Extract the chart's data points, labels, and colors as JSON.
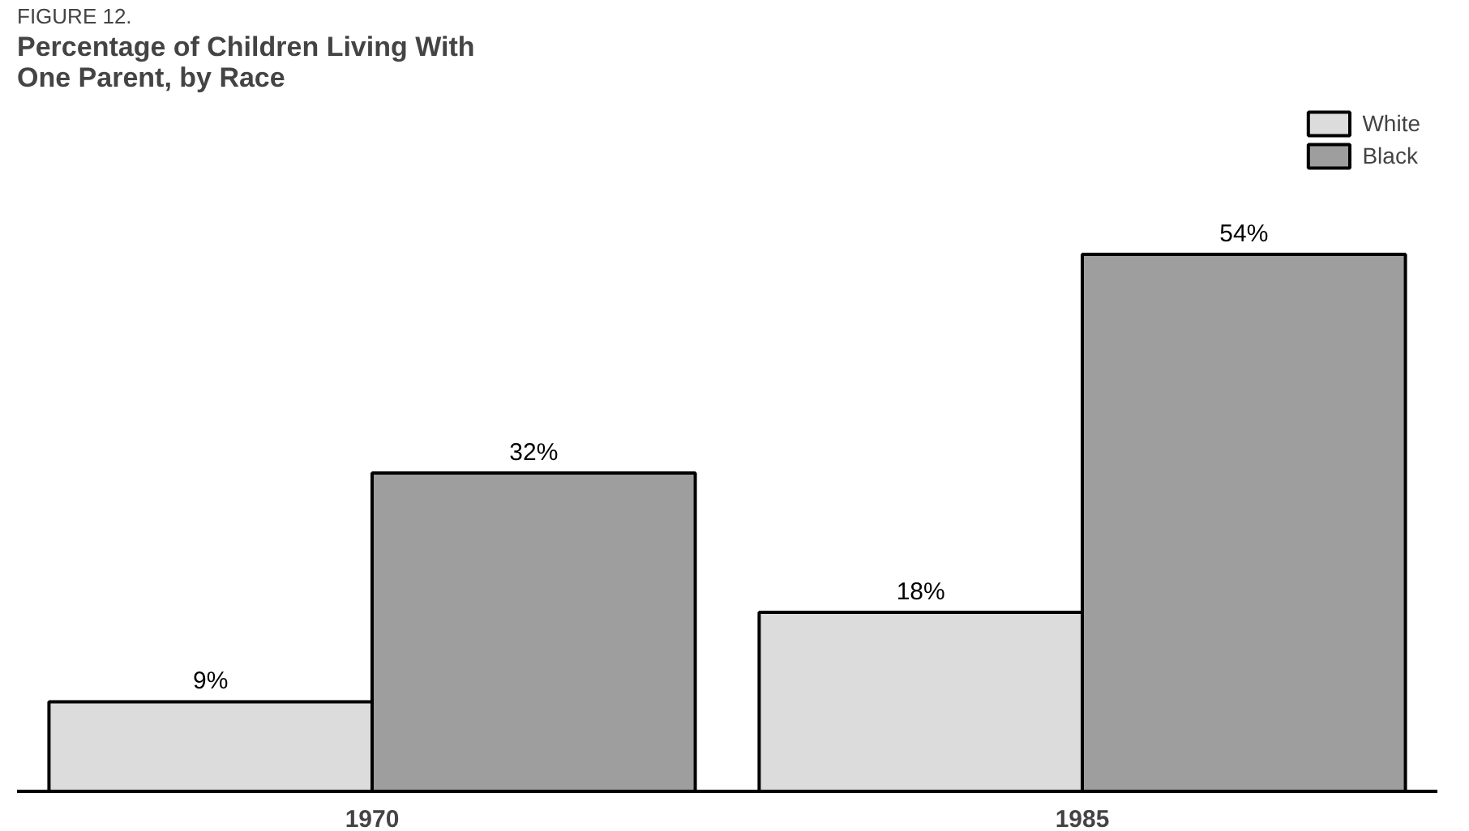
{
  "chart_data": {
    "type": "bar",
    "title": "Percentage of Children Living With One Parent, by Race",
    "annotations": [
      "FIGURE 12."
    ],
    "categories": [
      "1970",
      "1985"
    ],
    "series": [
      {
        "name": "White",
        "color": "#dcdcdc",
        "values": [
          9,
          18
        ],
        "value_labels": [
          "9%",
          "18%"
        ]
      },
      {
        "name": "Black",
        "color": "#9e9e9e",
        "values": [
          32,
          54
        ],
        "value_labels": [
          "32%",
          "54%"
        ]
      }
    ],
    "legend": "top right",
    "grid": false
  }
}
